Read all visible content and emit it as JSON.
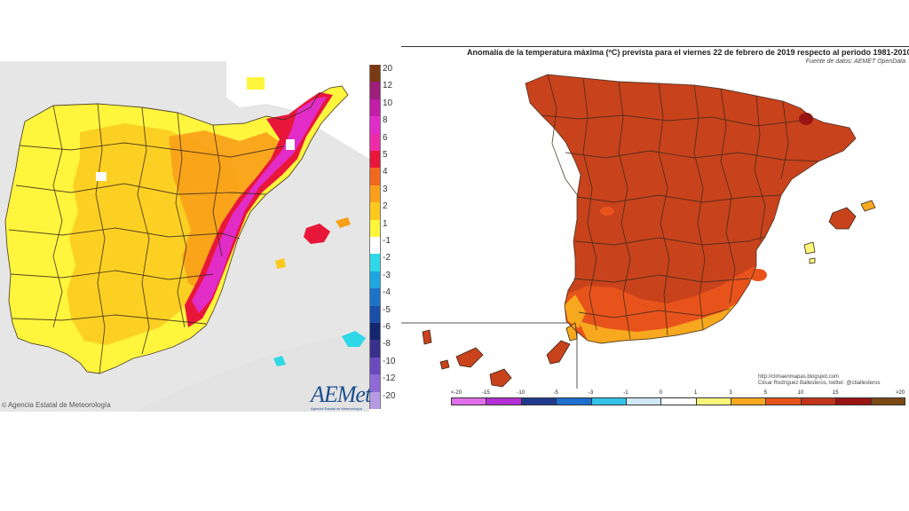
{
  "left_panel": {
    "legend": [
      {
        "label": "20",
        "color": "#7a3b14"
      },
      {
        "label": "12",
        "color": "#9c1f7a"
      },
      {
        "label": "10",
        "color": "#c41ea8"
      },
      {
        "label": "8",
        "color": "#e12cc7"
      },
      {
        "label": "6",
        "color": "#ee2aa8"
      },
      {
        "label": "5",
        "color": "#e8173a"
      },
      {
        "label": "4",
        "color": "#f2681e"
      },
      {
        "label": "3",
        "color": "#f99f1a"
      },
      {
        "label": "2",
        "color": "#fcc91f"
      },
      {
        "label": "1",
        "color": "#fff53d"
      },
      {
        "label": "-1",
        "color": "#ffffff"
      },
      {
        "label": "-2",
        "color": "#2fd8e6"
      },
      {
        "label": "-3",
        "color": "#1ea6e0"
      },
      {
        "label": "-4",
        "color": "#1e73c9"
      },
      {
        "label": "-5",
        "color": "#1a4fa8"
      },
      {
        "label": "-6",
        "color": "#13266e"
      },
      {
        "label": "-8",
        "color": "#3a2f8a"
      },
      {
        "label": "-10",
        "color": "#6a4bbd"
      },
      {
        "label": "-12",
        "color": "#8f69d4"
      },
      {
        "label": "-20",
        "color": "#b59ae3"
      }
    ],
    "credit": "Agencia Estatal de Meteorología",
    "logo_text": "AEMet",
    "logo_subtext": "Agencia Estatal de Meteorología"
  },
  "right_panel": {
    "title": "Anomalía de la temperatura máxima (ºC) prevista para el viernes 22 de febrero de 2019 respecto al periodo 1981-2010",
    "source": "Fuente de datos: AEMET OpenData",
    "credit_url": "http://climaenmapas.blogspot.com",
    "credit_author": "César Rodríguez Ballesteros, twitter: @cballesteros",
    "scale_labels": [
      "<-20",
      "-15",
      "-10",
      "-5",
      "-3",
      "-1",
      "0",
      "1",
      "3",
      "5",
      "10",
      "15",
      ">20"
    ],
    "scale_colors": [
      "#e06ee8",
      "#b430d6",
      "#1f3a8c",
      "#1e6fd0",
      "#32c3e8",
      "#cfe9f6",
      "#ffffff",
      "#fbf57a",
      "#f7a81e",
      "#e8531c",
      "#c2341a",
      "#9b1414",
      "#7a4a12"
    ]
  },
  "map_colors": {
    "sea_left": "#e6e6e6",
    "france_left": "#ffffff",
    "africa_left": "#e3e3e3",
    "land_base_left": "#fff53d",
    "orange_right": "#c8421c",
    "border": "#3a2a1a"
  }
}
